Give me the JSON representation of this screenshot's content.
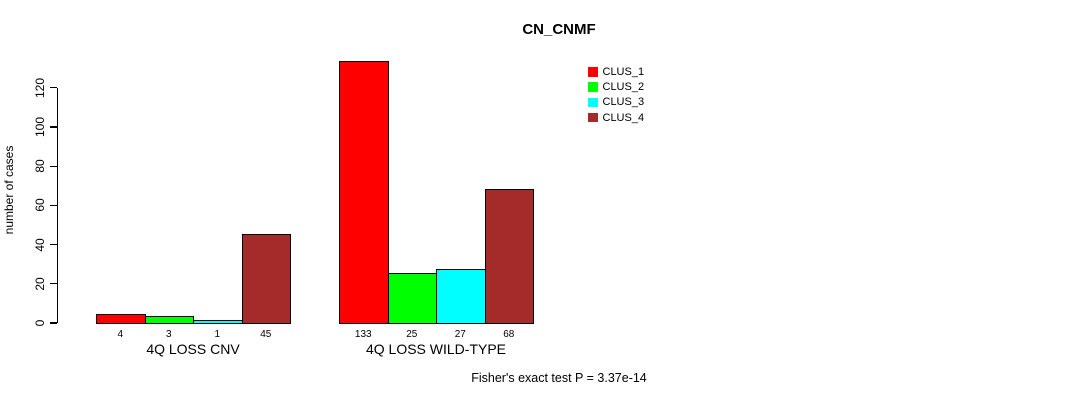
{
  "title": "CN_CNMF",
  "y_axis": {
    "label": "number of cases",
    "ticks": [
      0,
      20,
      40,
      60,
      80,
      100,
      120
    ]
  },
  "footer": "Fisher's exact test P = 3.37e-14",
  "legend": {
    "items": [
      {
        "label": "CLUS_1",
        "color": "#ff0000"
      },
      {
        "label": "CLUS_2",
        "color": "#00ff00"
      },
      {
        "label": "CLUS_3",
        "color": "#00ffff"
      },
      {
        "label": "CLUS_4",
        "color": "#a52a2a"
      }
    ]
  },
  "chart_data": {
    "type": "bar",
    "title": "CN_CNMF",
    "xlabel": "",
    "ylabel": "number of cases",
    "ylim": [
      0,
      133
    ],
    "y_ticks": [
      0,
      20,
      40,
      60,
      80,
      100,
      120
    ],
    "grid": false,
    "legend_position": "top-right",
    "categories": [
      "4Q LOSS CNV",
      "4Q LOSS WILD-TYPE"
    ],
    "series": [
      {
        "name": "CLUS_1",
        "color": "#ff0000",
        "values": [
          4,
          133
        ]
      },
      {
        "name": "CLUS_2",
        "color": "#00ff00",
        "values": [
          3,
          25
        ]
      },
      {
        "name": "CLUS_3",
        "color": "#00ffff",
        "values": [
          1,
          27
        ]
      },
      {
        "name": "CLUS_4",
        "color": "#a52a2a",
        "values": [
          45,
          68
        ]
      }
    ],
    "bar_labels": [
      [
        4,
        3,
        1,
        45
      ],
      [
        133,
        25,
        27,
        68
      ]
    ],
    "annotation": "Fisher's exact test P = 3.37e-14"
  }
}
